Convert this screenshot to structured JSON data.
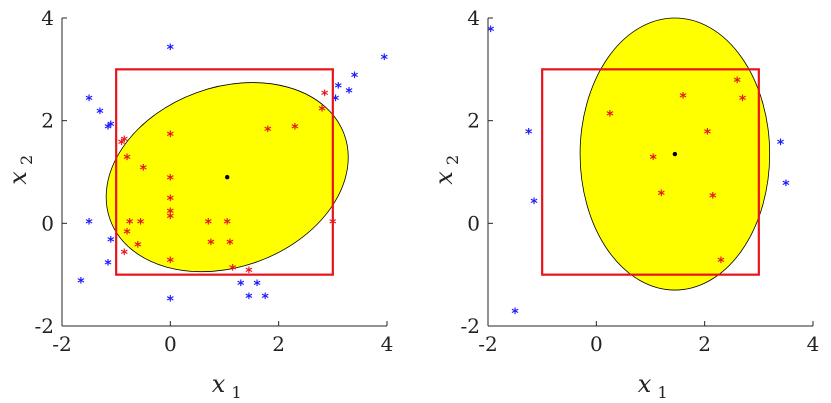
{
  "colors": {
    "region": "#ffff00",
    "box": "#e8141c",
    "inside": "#e8141c",
    "outside": "#1a1aff",
    "center": "#000000"
  },
  "chart_data": [
    {
      "type": "scatter",
      "title": "",
      "xlabel": "x",
      "xlabel_sub": "1",
      "ylabel": "x",
      "ylabel_sub": "2",
      "xlim": [
        -2,
        4
      ],
      "ylim": [
        -2,
        4
      ],
      "xticks": [
        "-2",
        "0",
        "2",
        "4"
      ],
      "yticks": [
        "-2",
        "0",
        "2",
        "4"
      ],
      "grid": false,
      "box": {
        "x0": -1,
        "y0": -1,
        "x1": 3,
        "y1": 3
      },
      "ellipse": {
        "cx": 1.05,
        "cy": 0.9,
        "rx": 2.3,
        "ry": 1.75,
        "angle_deg": 20
      },
      "center": [
        1.05,
        0.9
      ],
      "inside_points": [
        [
          -0.85,
          1.6
        ],
        [
          -0.9,
          1.55
        ],
        [
          -0.8,
          1.25
        ],
        [
          -0.5,
          1.05
        ],
        [
          -0.8,
          -0.2
        ],
        [
          -0.75,
          0
        ],
        [
          -0.6,
          -0.45
        ],
        [
          -0.85,
          -0.6
        ],
        [
          -0.55,
          0
        ],
        [
          0,
          1.7
        ],
        [
          0,
          0.85
        ],
        [
          0,
          0.45
        ],
        [
          0,
          0.2
        ],
        [
          0,
          0.1
        ],
        [
          0,
          -0.75
        ],
        [
          0.7,
          0
        ],
        [
          0.75,
          -0.4
        ],
        [
          1.05,
          0
        ],
        [
          1.1,
          -0.4
        ],
        [
          1.15,
          -0.9
        ],
        [
          1.45,
          -0.95
        ],
        [
          1.8,
          1.8
        ],
        [
          2.3,
          1.85
        ],
        [
          2.8,
          2.2
        ],
        [
          2.85,
          2.5
        ],
        [
          3.0,
          0
        ]
      ],
      "outside_points": [
        [
          -1.5,
          2.4
        ],
        [
          -1.3,
          2.15
        ],
        [
          -1.15,
          1.85
        ],
        [
          -1.1,
          1.9
        ],
        [
          -1.5,
          0
        ],
        [
          -1.1,
          -0.35
        ],
        [
          -1.15,
          -0.8
        ],
        [
          -1.65,
          -1.15
        ],
        [
          0,
          3.4
        ],
        [
          0,
          -1.5
        ],
        [
          1.3,
          -1.2
        ],
        [
          1.45,
          -1.45
        ],
        [
          1.6,
          -1.2
        ],
        [
          1.75,
          -1.45
        ],
        [
          3.05,
          2.4
        ],
        [
          3.1,
          2.65
        ],
        [
          3.3,
          2.55
        ],
        [
          3.4,
          2.85
        ],
        [
          3.95,
          3.2
        ]
      ]
    },
    {
      "type": "scatter",
      "title": "",
      "xlabel": "x",
      "xlabel_sub": "1",
      "ylabel": "x",
      "ylabel_sub": "2",
      "xlim": [
        -2,
        4
      ],
      "ylim": [
        -2,
        4
      ],
      "xticks": [
        "-2",
        "0",
        "2",
        "4"
      ],
      "yticks": [
        "-2",
        "0",
        "2",
        "4"
      ],
      "grid": false,
      "box": {
        "x0": -1,
        "y0": -1,
        "x1": 3,
        "y1": 3
      },
      "ellipse": {
        "cx": 1.45,
        "cy": 1.35,
        "rx": 1.75,
        "ry": 2.65,
        "angle_deg": 0
      },
      "center": [
        1.45,
        1.35
      ],
      "inside_points": [
        [
          0.25,
          2.1
        ],
        [
          1.05,
          1.25
        ],
        [
          1.6,
          2.45
        ],
        [
          2.05,
          1.75
        ],
        [
          2.6,
          2.75
        ],
        [
          2.7,
          2.4
        ],
        [
          1.2,
          0.55
        ],
        [
          2.15,
          0.5
        ],
        [
          2.3,
          -0.75
        ]
      ],
      "outside_points": [
        [
          -1.95,
          3.75
        ],
        [
          -1.25,
          1.75
        ],
        [
          -1.15,
          0.4
        ],
        [
          -1.5,
          -1.75
        ],
        [
          3.4,
          1.55
        ],
        [
          3.5,
          0.75
        ]
      ]
    }
  ]
}
